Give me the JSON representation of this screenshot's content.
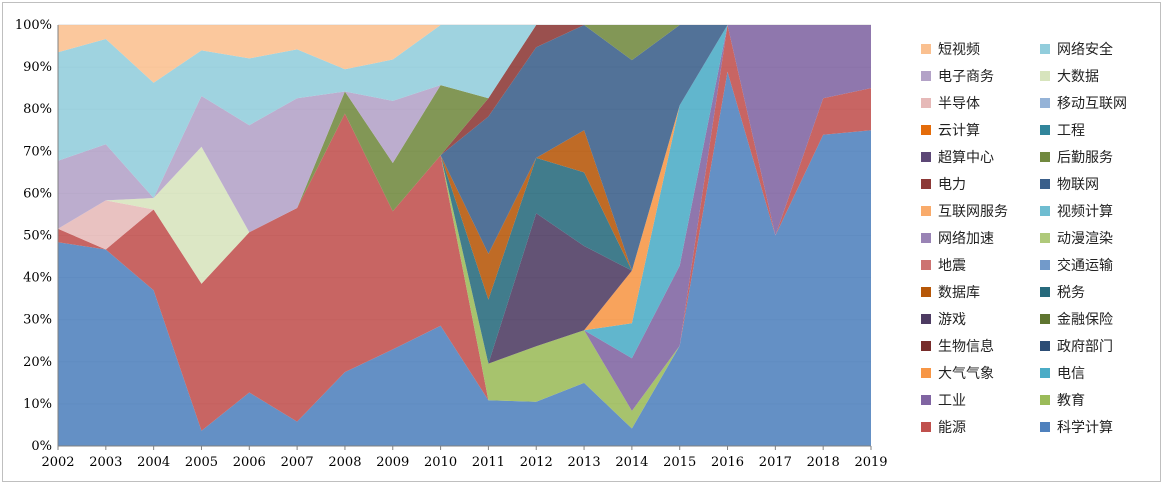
{
  "chart_data": {
    "type": "area",
    "stacked": true,
    "percent": true,
    "x": [
      "2002",
      "2003",
      "2004",
      "2005",
      "2006",
      "2007",
      "2008",
      "2009",
      "2010",
      "2011",
      "2012",
      "2013",
      "2014",
      "2015",
      "2016",
      "2017",
      "2018",
      "2019"
    ],
    "y_ticks": [
      "0%",
      "10%",
      "20%",
      "30%",
      "40%",
      "50%",
      "60%",
      "70%",
      "80%",
      "90%",
      "100%"
    ],
    "ylim": [
      0,
      100
    ],
    "grid": "horizontal",
    "legend_position": "right",
    "series": [
      {
        "name": "科学计算",
        "color": "#4f81bd",
        "values": [
          30,
          28,
          27,
          3,
          8,
          4,
          10,
          14,
          12,
          5,
          4,
          6,
          1,
          5,
          8,
          5,
          17,
          15
        ]
      },
      {
        "name": "能源",
        "color": "#c0504d",
        "values": [
          2,
          0,
          14,
          29,
          24,
          35,
          35,
          20,
          17,
          0,
          0,
          0,
          0,
          0,
          1,
          0,
          2,
          2
        ]
      },
      {
        "name": "教育",
        "color": "#9bbb59",
        "values": [
          0,
          0,
          0,
          0,
          0,
          0,
          0,
          0,
          0,
          4,
          5,
          5,
          1,
          0,
          0,
          0,
          0,
          0
        ]
      },
      {
        "name": "工业",
        "color": "#8064a2",
        "values": [
          0,
          0,
          0,
          0,
          0,
          0,
          0,
          0,
          0,
          0,
          0,
          0,
          3,
          4,
          0,
          5,
          4,
          3
        ]
      },
      {
        "name": "电信",
        "color": "#4bacc6",
        "values": [
          0,
          0,
          0,
          0,
          0,
          0,
          0,
          0,
          0,
          0,
          0,
          0,
          2,
          8,
          0,
          0,
          0,
          0
        ]
      },
      {
        "name": "大气气象",
        "color": "#f79646",
        "values": [
          0,
          0,
          0,
          0,
          0,
          0,
          0,
          0,
          0,
          0,
          0,
          0,
          3,
          0,
          0,
          0,
          0,
          0
        ]
      },
      {
        "name": "政府部门",
        "color": "#2c4d75",
        "values": [
          0,
          0,
          0,
          0,
          0,
          0,
          0,
          0,
          0,
          0,
          0,
          0,
          0,
          0,
          0,
          0,
          0,
          0
        ]
      },
      {
        "name": "生物信息",
        "color": "#772c2a",
        "values": [
          0,
          0,
          0,
          0,
          0,
          0,
          0,
          0,
          0,
          0,
          0,
          0,
          0,
          0,
          0,
          0,
          0,
          0
        ]
      },
      {
        "name": "金融保险",
        "color": "#5f7530",
        "values": [
          0,
          0,
          0,
          0,
          0,
          0,
          0,
          0,
          0,
          0,
          0,
          0,
          0,
          0,
          0,
          0,
          0,
          0
        ]
      },
      {
        "name": "游戏",
        "color": "#4d3b62",
        "values": [
          0,
          0,
          0,
          0,
          0,
          0,
          0,
          0,
          0,
          0,
          12,
          8,
          0,
          0,
          0,
          0,
          0,
          0
        ]
      },
      {
        "name": "税务",
        "color": "#276a7c",
        "values": [
          0,
          0,
          0,
          0,
          0,
          0,
          0,
          0,
          0,
          7,
          5,
          7,
          0,
          0,
          0,
          0,
          0,
          0
        ]
      },
      {
        "name": "数据库",
        "color": "#b65708",
        "values": [
          0,
          0,
          0,
          0,
          0,
          0,
          0,
          0,
          0,
          5,
          0,
          4,
          0,
          0,
          0,
          0,
          0,
          0
        ]
      },
      {
        "name": "交通运输",
        "color": "#729aca",
        "values": [
          0,
          0,
          0,
          0,
          0,
          0,
          0,
          0,
          0,
          0,
          0,
          0,
          0,
          0,
          0,
          0,
          0,
          0
        ]
      },
      {
        "name": "地震",
        "color": "#cd7371",
        "values": [
          0,
          0,
          0,
          0,
          0,
          0,
          0,
          0,
          0,
          0,
          0,
          0,
          0,
          0,
          0,
          0,
          0,
          0
        ]
      },
      {
        "name": "动漫渲染",
        "color": "#afc97a",
        "values": [
          0,
          0,
          0,
          0,
          0,
          0,
          0,
          0,
          0,
          0,
          0,
          0,
          0,
          0,
          0,
          0,
          0,
          0
        ]
      },
      {
        "name": "网络加速",
        "color": "#9983b5",
        "values": [
          0,
          0,
          0,
          0,
          0,
          0,
          0,
          0,
          0,
          0,
          0,
          0,
          0,
          0,
          0,
          0,
          0,
          0
        ]
      },
      {
        "name": "视频计算",
        "color": "#6fbdd1",
        "values": [
          0,
          0,
          0,
          0,
          0,
          0,
          0,
          0,
          0,
          0,
          0,
          0,
          0,
          0,
          0,
          0,
          0,
          0
        ]
      },
      {
        "name": "互联网服务",
        "color": "#f9ab6b",
        "values": [
          0,
          0,
          0,
          0,
          0,
          0,
          0,
          0,
          0,
          0,
          0,
          0,
          0,
          0,
          0,
          0,
          0,
          0
        ]
      },
      {
        "name": "物联网",
        "color": "#3a5f8a",
        "values": [
          0,
          0,
          0,
          0,
          0,
          0,
          0,
          0,
          0,
          15,
          10,
          10,
          12,
          4,
          0,
          0,
          0,
          0
        ]
      },
      {
        "name": "电力",
        "color": "#8c3836",
        "values": [
          0,
          0,
          0,
          0,
          0,
          0,
          0,
          0,
          0,
          2,
          2,
          0,
          0,
          0,
          0,
          0,
          0,
          0
        ]
      },
      {
        "name": "后勤服务",
        "color": "#71893f",
        "values": [
          0,
          0,
          0,
          0,
          0,
          0,
          3,
          7,
          7,
          0,
          0,
          0,
          2,
          0,
          0,
          0,
          0,
          0
        ]
      },
      {
        "name": "超算中心",
        "color": "#5c4776",
        "values": [
          0,
          0,
          0,
          0,
          0,
          0,
          0,
          0,
          0,
          0,
          0,
          0,
          0,
          0,
          0,
          0,
          0,
          0
        ]
      },
      {
        "name": "工程",
        "color": "#31859b",
        "values": [
          0,
          0,
          0,
          0,
          0,
          0,
          0,
          0,
          0,
          0,
          0,
          0,
          0,
          0,
          0,
          0,
          0,
          0
        ]
      },
      {
        "name": "云计算",
        "color": "#e46c0a",
        "values": [
          0,
          0,
          0,
          0,
          0,
          0,
          0,
          0,
          0,
          0,
          0,
          0,
          0,
          0,
          0,
          0,
          0,
          0
        ]
      },
      {
        "name": "移动互联网",
        "color": "#95b3d7",
        "values": [
          0,
          0,
          0,
          0,
          0,
          0,
          0,
          0,
          0,
          0,
          0,
          0,
          0,
          0,
          0,
          0,
          0,
          0
        ]
      },
      {
        "name": "半导体",
        "color": "#e6b9b8",
        "values": [
          0,
          7,
          0,
          0,
          0,
          0,
          0,
          0,
          0,
          0,
          0,
          0,
          0,
          0,
          0,
          0,
          0,
          0
        ]
      },
      {
        "name": "大数据",
        "color": "#d7e4bd",
        "values": [
          0,
          0,
          2,
          27,
          0,
          0,
          0,
          0,
          0,
          0,
          0,
          0,
          0,
          0,
          0,
          0,
          0,
          0
        ]
      },
      {
        "name": "电子商务",
        "color": "#b3a2c7",
        "values": [
          10,
          8,
          0,
          10,
          16,
          18,
          0,
          9,
          0,
          0,
          0,
          0,
          0,
          0,
          0,
          0,
          0,
          0
        ]
      },
      {
        "name": "网络安全",
        "color": "#92cddc",
        "values": [
          16,
          15,
          20,
          9,
          10,
          8,
          3,
          6,
          6,
          8,
          0,
          0,
          0,
          0,
          0,
          0,
          0,
          0
        ]
      },
      {
        "name": "短视频",
        "color": "#fac090",
        "values": [
          4,
          2,
          10,
          5,
          5,
          4,
          6,
          5,
          0,
          0,
          0,
          0,
          0,
          0,
          0,
          0,
          0,
          0
        ]
      }
    ]
  }
}
